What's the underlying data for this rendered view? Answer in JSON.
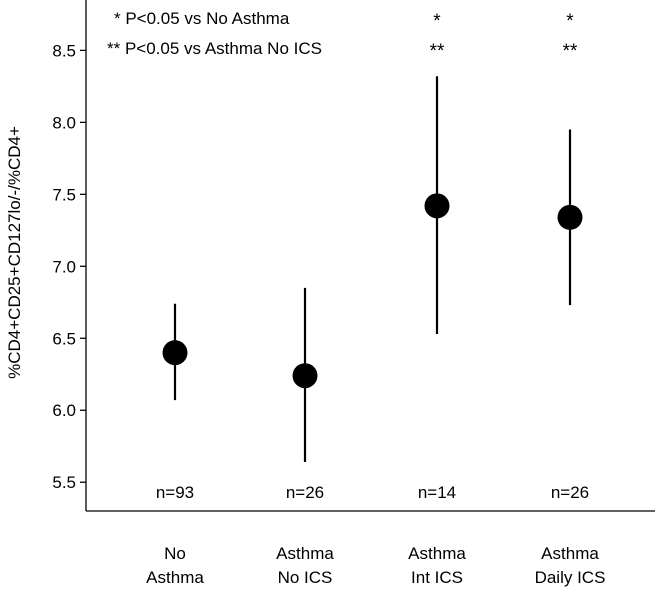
{
  "chart_data": {
    "type": "scatter",
    "ylabel": "%CD4+CD25+CD127lo/-/%CD4+",
    "xlabel": "",
    "ylim": [
      5.3,
      8.85
    ],
    "yticks": [
      5.5,
      6.0,
      6.5,
      7.0,
      7.5,
      8.0,
      8.5
    ],
    "ytick_labels": [
      "5.5",
      "6.0",
      "6.5",
      "7.0",
      "7.5",
      "8.0",
      "8.5"
    ],
    "grid": false,
    "categories": [
      [
        "No",
        "Asthma"
      ],
      [
        "Asthma",
        "No ICS"
      ],
      [
        "Asthma",
        "Int ICS"
      ],
      [
        "Asthma",
        "Daily ICS"
      ]
    ],
    "points": [
      {
        "value": 6.4,
        "lower": 6.07,
        "upper": 6.74,
        "n_label": "n=93",
        "sig": [
          "",
          ""
        ]
      },
      {
        "value": 6.24,
        "lower": 5.64,
        "upper": 6.85,
        "n_label": "n=26",
        "sig": [
          "",
          ""
        ]
      },
      {
        "value": 7.42,
        "lower": 6.53,
        "upper": 8.32,
        "n_label": "n=14",
        "sig": [
          "*",
          "**"
        ]
      },
      {
        "value": 7.34,
        "lower": 6.73,
        "upper": 7.95,
        "n_label": "n=26",
        "sig": [
          "*",
          "**"
        ]
      }
    ],
    "legend": [
      "* P<0.05 vs No Asthma",
      "** P<0.05 vs Asthma No ICS"
    ],
    "legend_position": "top-left"
  }
}
